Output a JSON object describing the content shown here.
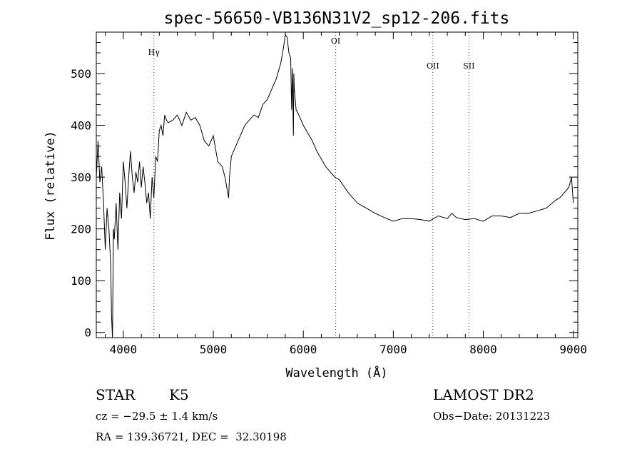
{
  "chart_data": {
    "type": "line",
    "title": "spec-56650-VB136N31V2_sp12-206.fits",
    "xlabel": "Wavelength (Å)",
    "ylabel": "Flux (relative)",
    "xlim": [
      3700,
      9050
    ],
    "ylim": [
      -10,
      580
    ],
    "xticks": [
      4000,
      5000,
      6000,
      7000,
      8000,
      9000
    ],
    "yticks": [
      0,
      100,
      200,
      300,
      400,
      500
    ],
    "series": [
      {
        "name": "spectrum",
        "x": [
          3700,
          3720,
          3740,
          3760,
          3780,
          3800,
          3820,
          3840,
          3860,
          3870,
          3880,
          3890,
          3900,
          3920,
          3940,
          3960,
          3980,
          4000,
          4020,
          4040,
          4060,
          4080,
          4100,
          4120,
          4140,
          4160,
          4180,
          4200,
          4220,
          4240,
          4260,
          4280,
          4300,
          4320,
          4340,
          4360,
          4380,
          4400,
          4420,
          4440,
          4460,
          4480,
          4500,
          4550,
          4600,
          4650,
          4700,
          4750,
          4800,
          4850,
          4900,
          4950,
          5000,
          5050,
          5100,
          5130,
          5160,
          5170,
          5180,
          5200,
          5250,
          5300,
          5350,
          5400,
          5450,
          5500,
          5550,
          5600,
          5650,
          5700,
          5750,
          5780,
          5800,
          5820,
          5840,
          5860,
          5870,
          5880,
          5890,
          5895,
          5900,
          5920,
          5950,
          6000,
          6050,
          6100,
          6150,
          6200,
          6250,
          6300,
          6350,
          6400,
          6500,
          6600,
          6700,
          6800,
          6900,
          7000,
          7100,
          7200,
          7300,
          7400,
          7500,
          7600,
          7650,
          7700,
          7800,
          7900,
          8000,
          8100,
          8200,
          8300,
          8400,
          8500,
          8600,
          8700,
          8800,
          8850,
          8900,
          8950,
          8980,
          9000
        ],
        "y": [
          300,
          370,
          290,
          320,
          250,
          160,
          240,
          200,
          130,
          30,
          -10,
          200,
          180,
          250,
          160,
          270,
          220,
          330,
          290,
          240,
          300,
          350,
          300,
          270,
          310,
          290,
          330,
          280,
          320,
          290,
          250,
          270,
          220,
          300,
          260,
          340,
          330,
          390,
          400,
          380,
          420,
          410,
          405,
          410,
          420,
          400,
          425,
          410,
          415,
          400,
          370,
          360,
          380,
          330,
          320,
          300,
          270,
          260,
          300,
          340,
          360,
          380,
          400,
          410,
          420,
          415,
          440,
          450,
          470,
          490,
          520,
          550,
          575,
          570,
          540,
          530,
          430,
          510,
          380,
          500,
          470,
          430,
          420,
          400,
          385,
          370,
          350,
          335,
          320,
          310,
          300,
          295,
          270,
          250,
          240,
          230,
          222,
          215,
          220,
          220,
          218,
          215,
          225,
          220,
          230,
          222,
          218,
          220,
          215,
          225,
          225,
          222,
          230,
          230,
          235,
          240,
          255,
          260,
          270,
          280,
          300,
          250
        ]
      }
    ],
    "annotations": [
      {
        "label": "Hγ",
        "x": 4340
      },
      {
        "label": "OI",
        "x": 6360
      },
      {
        "label": "OII",
        "x": 7440
      },
      {
        "label": "SII",
        "x": 7840
      }
    ]
  },
  "info": {
    "object_type": "STAR",
    "subclass": "K5",
    "survey": "LAMOST DR2",
    "cz": "cz = −29.5 ± 1.4 km/s",
    "obs_date": "Obs−Date: 20131223",
    "coords": "RA = 139.36721, DEC =  32.30198"
  }
}
